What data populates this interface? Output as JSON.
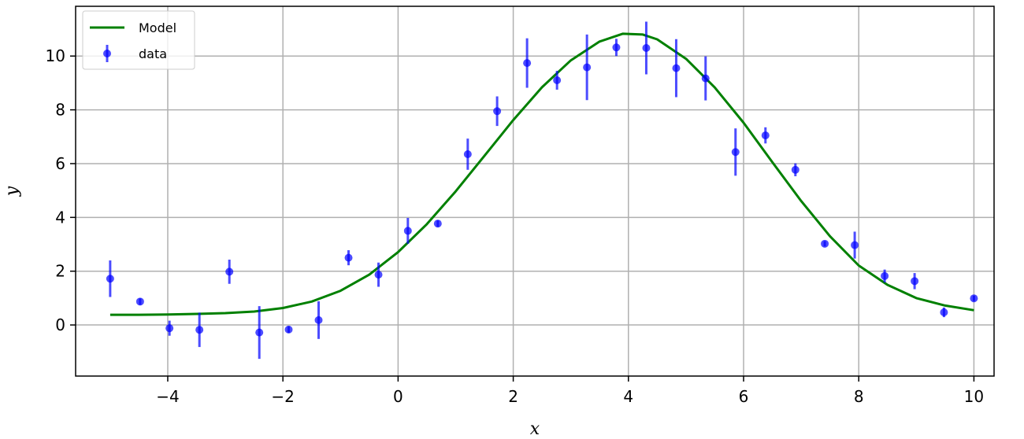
{
  "chart_data": {
    "type": "scatter",
    "title": "",
    "xlabel": "x",
    "ylabel": "y",
    "xlim": [
      -5.6,
      10.35
    ],
    "ylim": [
      -1.9,
      11.85
    ],
    "grid": true,
    "legend_position": "top-left",
    "xticks": [
      -4,
      -2,
      0,
      2,
      4,
      6,
      8,
      10
    ],
    "xtick_labels": [
      "−4",
      "−2",
      "0",
      "2",
      "4",
      "6",
      "8",
      "10"
    ],
    "yticks": [
      0,
      2,
      4,
      6,
      8,
      10
    ],
    "ytick_labels": [
      "0",
      "2",
      "4",
      "6",
      "8",
      "10"
    ],
    "series": [
      {
        "name": "Model",
        "kind": "line",
        "color": "#008000",
        "x": [
          -5.0,
          -4.5,
          -4.0,
          -3.5,
          -3.0,
          -2.5,
          -2.0,
          -1.5,
          -1.0,
          -0.5,
          0.0,
          0.5,
          1.0,
          1.5,
          2.0,
          2.5,
          3.0,
          3.5,
          3.9,
          4.25,
          4.5,
          5.0,
          5.5,
          6.0,
          6.5,
          7.0,
          7.5,
          8.0,
          8.5,
          9.0,
          9.5,
          10.0
        ],
        "y": [
          0.38,
          0.38,
          0.39,
          0.41,
          0.44,
          0.5,
          0.63,
          0.87,
          1.27,
          1.87,
          2.71,
          3.75,
          4.97,
          6.29,
          7.62,
          8.84,
          9.84,
          10.54,
          10.83,
          10.8,
          10.62,
          9.9,
          8.83,
          7.52,
          6.05,
          4.61,
          3.3,
          2.21,
          1.49,
          1.0,
          0.72,
          0.55
        ]
      },
      {
        "name": "data",
        "kind": "errorbar",
        "color": "#0000ff",
        "x": [
          -5.0,
          -4.48,
          -3.97,
          -3.45,
          -2.93,
          -2.41,
          -1.9,
          -1.38,
          -0.86,
          -0.34,
          0.17,
          0.69,
          1.21,
          1.72,
          2.24,
          2.76,
          3.28,
          3.79,
          4.31,
          4.83,
          5.34,
          5.86,
          6.38,
          6.9,
          7.41,
          7.93,
          8.45,
          8.97,
          9.48,
          10.0
        ],
        "y": [
          1.72,
          0.87,
          -0.12,
          -0.18,
          1.98,
          -0.28,
          -0.17,
          0.18,
          2.5,
          1.87,
          3.5,
          3.77,
          6.35,
          7.95,
          9.74,
          9.1,
          9.58,
          10.32,
          10.3,
          9.55,
          9.17,
          6.43,
          7.05,
          5.77,
          3.02,
          2.97,
          1.82,
          1.63,
          0.47,
          0.99
        ],
        "yerr": [
          0.68,
          0.12,
          0.28,
          0.64,
          0.45,
          0.98,
          0.12,
          0.7,
          0.28,
          0.45,
          0.48,
          0.12,
          0.58,
          0.55,
          0.92,
          0.35,
          1.22,
          0.32,
          0.98,
          1.08,
          0.82,
          0.88,
          0.3,
          0.24,
          0.1,
          0.5,
          0.24,
          0.3,
          0.18,
          0.1
        ]
      }
    ]
  }
}
